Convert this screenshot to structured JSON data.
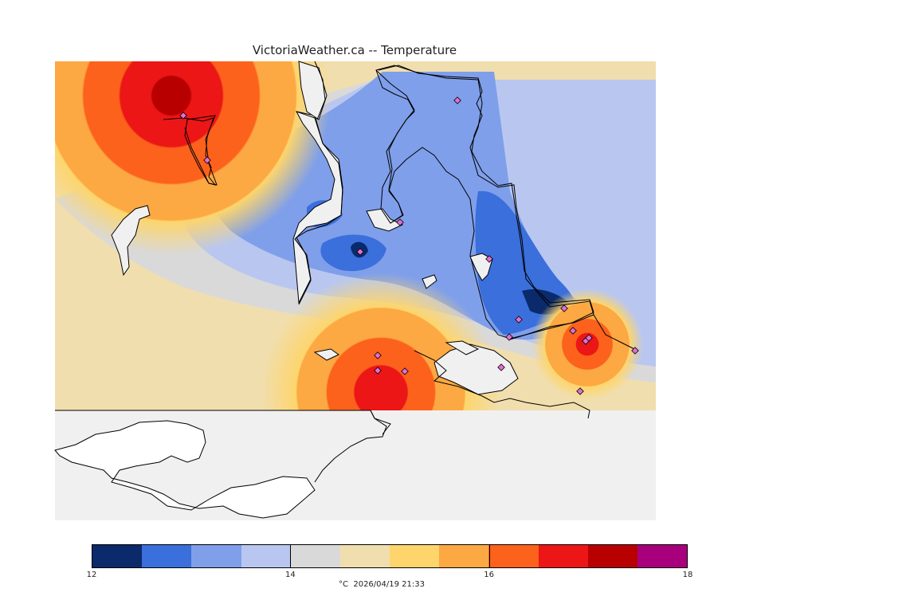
{
  "title": "VictoriaWeather.ca -- Temperature",
  "footer": "°C  2026/04/19 21:33",
  "legend": {
    "min": 12,
    "max": 18,
    "tick_labels": [
      "12",
      "14",
      "16",
      "18"
    ],
    "colors": [
      "#0b2a6b",
      "#3a6fdc",
      "#7f9fea",
      "#b9c7f0",
      "#d9d9d9",
      "#f1deae",
      "#fdd56c",
      "#fca843",
      "#fc621c",
      "#ec1616",
      "#b80000",
      "#a8007c"
    ]
  },
  "map": {
    "background_color": "#f0f0f0",
    "coast_color": "#000000",
    "station_color": "#e070d0",
    "station_count": 18
  }
}
